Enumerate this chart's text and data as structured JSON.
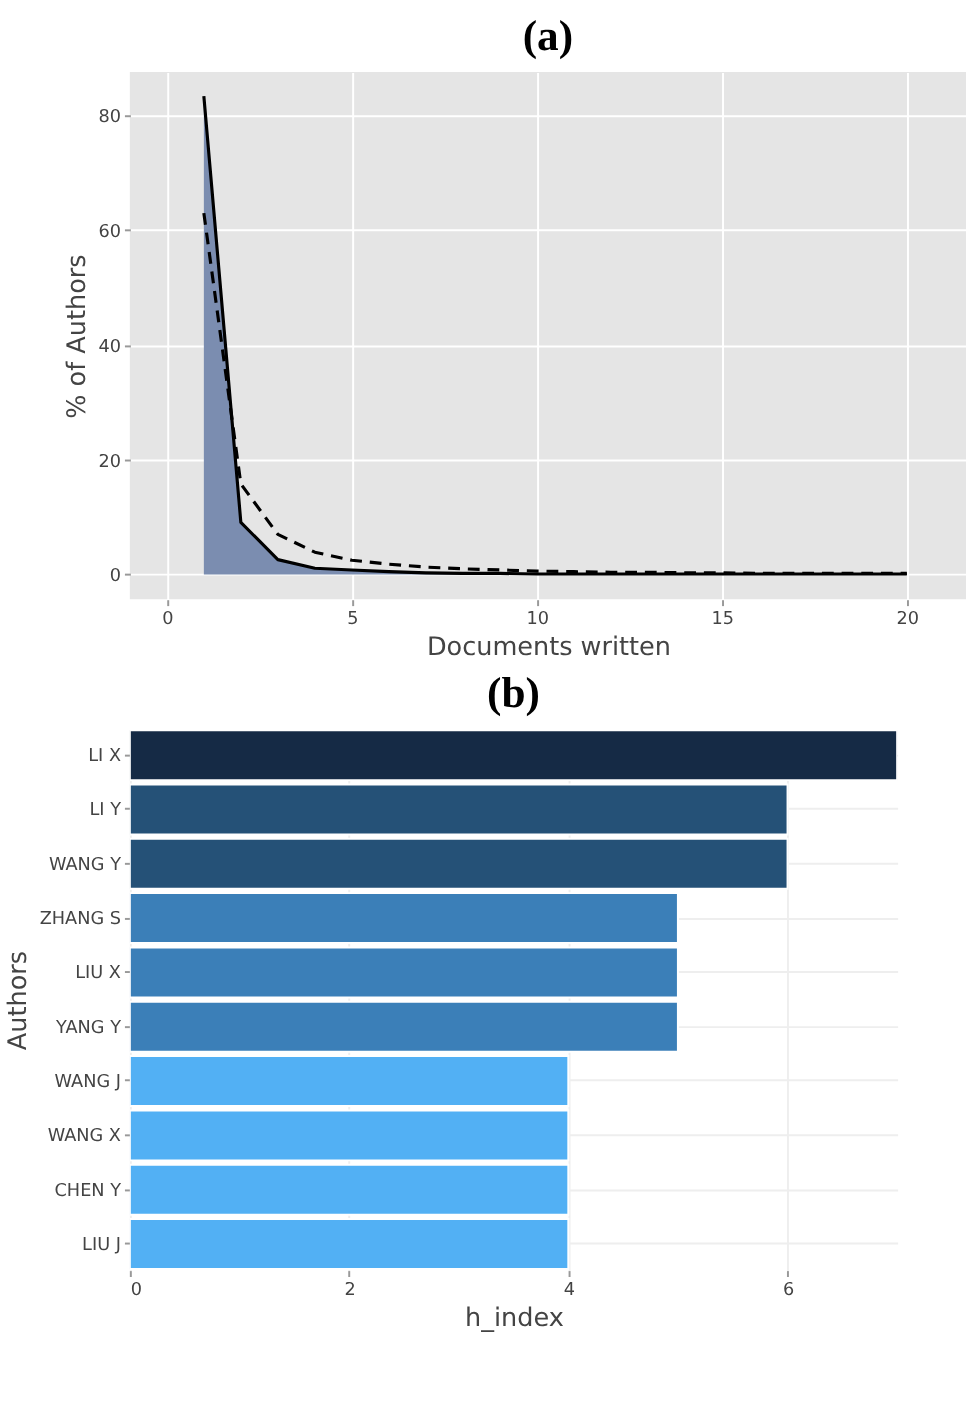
{
  "chart_data": [
    {
      "type": "area",
      "title": "(a)",
      "xlabel": "Documents written",
      "ylabel": "% of Authors",
      "x": [
        1,
        2,
        3,
        4,
        5,
        6,
        7,
        8,
        9,
        10,
        11,
        12,
        13,
        14,
        15,
        16,
        17,
        18,
        19,
        20
      ],
      "xlim": [
        -1,
        21.6
      ],
      "ylim": [
        -4.3,
        87.6
      ],
      "xticks": [
        0,
        5,
        10,
        15,
        20
      ],
      "yticks": [
        0,
        20,
        40,
        60,
        80
      ],
      "grid": true,
      "series": [
        {
          "type": "area",
          "color": "#7b8db0",
          "values": [
            83.4,
            9.1,
            2.6,
            1.1,
            0.8,
            0.5,
            0.3,
            0.2,
            0.2,
            0.1,
            0.1,
            0.1,
            0.1,
            0.1,
            0.1,
            0.1,
            0.1,
            0.1,
            0.1,
            0.1
          ]
        },
        {
          "type": "line",
          "color": "#000000",
          "line_style": "dashed",
          "values": [
            63,
            15.8,
            7,
            3.9,
            2.5,
            1.8,
            1.3,
            1,
            0.8,
            0.6,
            0.5,
            0.4,
            0.4,
            0.3,
            0.3,
            0.2,
            0.2,
            0.2,
            0.2,
            0.2
          ]
        }
      ]
    },
    {
      "type": "bar",
      "orientation": "horizontal",
      "title": "(b)",
      "xlabel": "h_index",
      "ylabel": "Authors",
      "categories": [
        "LI X",
        "LI Y",
        "WANG Y",
        "ZHANG S",
        "LIU X",
        "YANG Y",
        "WANG J",
        "WANG X",
        "CHEN Y",
        "LIU J"
      ],
      "values": [
        7,
        6,
        6,
        5,
        5,
        5,
        4,
        4,
        4,
        4
      ],
      "colors": [
        "#152a45",
        "#255177",
        "#255177",
        "#3b7fb8",
        "#3b7fb8",
        "#3b7fb8",
        "#52b0f4",
        "#52b0f4",
        "#52b0f4",
        "#52b0f4"
      ],
      "xlim": [
        0,
        7
      ],
      "xticks": [
        0,
        2,
        4,
        6
      ],
      "grid": true
    }
  ]
}
